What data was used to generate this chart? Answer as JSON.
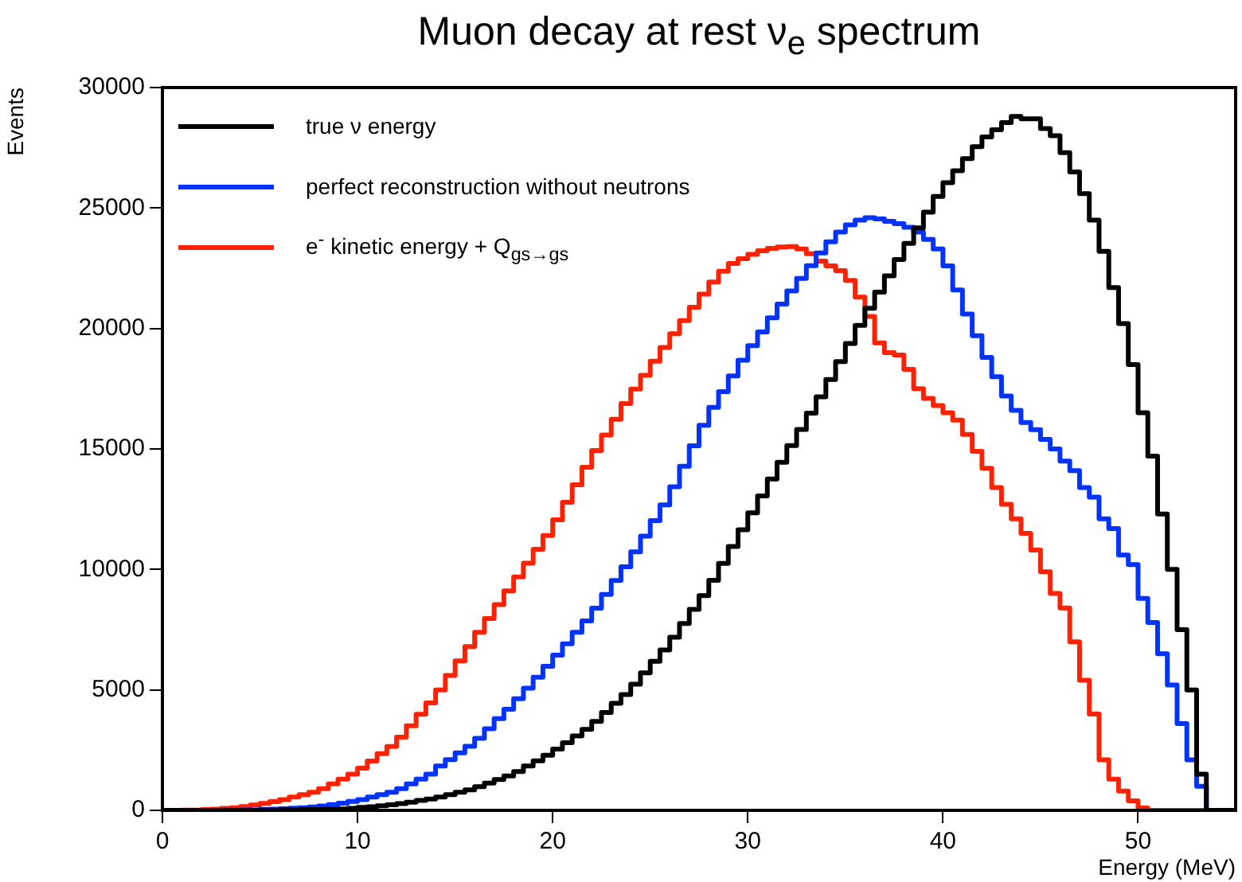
{
  "chart_data": {
    "type": "histogram",
    "title": "Muon decay at rest ν$_{e}$ spectrum",
    "xlabel": "Energy (MeV)",
    "ylabel": "Events",
    "bins": [
      0,
      0.5,
      1,
      1.5,
      2,
      2.5,
      3,
      3.5,
      4,
      4.5,
      5,
      5.5,
      6,
      6.5,
      7,
      7.5,
      8,
      8.5,
      9,
      9.5,
      10,
      10.5,
      11,
      11.5,
      12,
      12.5,
      13,
      13.5,
      14,
      14.5,
      15,
      15.5,
      16,
      16.5,
      17,
      17.5,
      18,
      18.5,
      19,
      19.5,
      20,
      20.5,
      21,
      21.5,
      22,
      22.5,
      23,
      23.5,
      24,
      24.5,
      25,
      25.5,
      26,
      26.5,
      27,
      27.5,
      28,
      28.5,
      29,
      29.5,
      30,
      30.5,
      31,
      31.5,
      32,
      32.5,
      33,
      33.5,
      34,
      34.5,
      35,
      35.5,
      36,
      36.5,
      37,
      37.5,
      38,
      38.5,
      39,
      39.5,
      40,
      40.5,
      41,
      41.5,
      42,
      42.5,
      43,
      43.5,
      44,
      44.5,
      45,
      45.5,
      46,
      46.5,
      47,
      47.5,
      48,
      48.5,
      49,
      49.5,
      50,
      50.5,
      51,
      51.5,
      52,
      52.5,
      53,
      53.5,
      54,
      54.5,
      55
    ],
    "series": [
      {
        "name": "true ν energy",
        "color": "#000000",
        "values": [
          0,
          0,
          0,
          0,
          0,
          0,
          0,
          0,
          0,
          0,
          10,
          10,
          20,
          20,
          30,
          30,
          40,
          50,
          60,
          80,
          120,
          150,
          190,
          230,
          280,
          340,
          410,
          470,
          550,
          650,
          750,
          850,
          980,
          1130,
          1280,
          1430,
          1610,
          1840,
          2060,
          2290,
          2540,
          2810,
          3090,
          3360,
          3690,
          4060,
          4440,
          4810,
          5240,
          5710,
          6190,
          6660,
          7190,
          7760,
          8340,
          8910,
          9550,
          10250,
          10950,
          11650,
          12350,
          13050,
          13750,
          14450,
          15140,
          15810,
          16490,
          17160,
          17880,
          18630,
          19380,
          20130,
          20840,
          21510,
          22190,
          22860,
          23530,
          24180,
          24830,
          25480,
          26050,
          26550,
          27050,
          27550,
          27950,
          28250,
          28550,
          28800,
          28700,
          28700,
          28300,
          28000,
          27300,
          26500,
          25600,
          24500,
          23200,
          21700,
          20200,
          18500,
          16500,
          14700,
          12300,
          10000,
          7500,
          5000,
          1500,
          0,
          0,
          0
        ]
      },
      {
        "name": "perfect reconstruction without neutrons",
        "color": "#0033ff",
        "values": [
          0,
          0,
          0,
          0,
          0,
          0,
          10,
          10,
          20,
          20,
          40,
          50,
          70,
          90,
          110,
          140,
          180,
          240,
          300,
          370,
          450,
          550,
          650,
          750,
          900,
          1100,
          1300,
          1500,
          1840,
          2110,
          2390,
          2660,
          2990,
          3390,
          3810,
          4200,
          4630,
          5070,
          5530,
          5980,
          6440,
          6910,
          7390,
          7860,
          8390,
          8960,
          9540,
          10110,
          10730,
          11380,
          12030,
          12680,
          13430,
          14280,
          15130,
          15980,
          16730,
          17380,
          18030,
          18680,
          19290,
          19860,
          20440,
          21010,
          21560,
          22080,
          22610,
          23140,
          23600,
          24000,
          24300,
          24500,
          24600,
          24550,
          24450,
          24350,
          24200,
          24000,
          23700,
          23300,
          22600,
          21600,
          20600,
          19700,
          18800,
          18000,
          17200,
          16600,
          16100,
          15800,
          15400,
          15000,
          14500,
          14100,
          13400,
          13000,
          12100,
          11700,
          10600,
          10200,
          8800,
          7800,
          6500,
          5200,
          3600,
          2100,
          1000,
          0,
          0,
          0
        ]
      },
      {
        "name": "e$^{-}$ kinetic energy + Q$_{gs→gs}$",
        "color": "#ff2200",
        "values": [
          0,
          0,
          10,
          10,
          30,
          50,
          80,
          110,
          160,
          220,
          290,
          360,
          450,
          550,
          650,
          750,
          900,
          1100,
          1300,
          1500,
          1750,
          2050,
          2350,
          2650,
          3040,
          3510,
          3990,
          4460,
          5000,
          5600,
          6200,
          6800,
          7390,
          7960,
          8540,
          9110,
          9690,
          10260,
          10840,
          11410,
          12060,
          12790,
          13510,
          14240,
          14930,
          15580,
          16230,
          16880,
          17490,
          18060,
          18640,
          19210,
          19780,
          20330,
          20880,
          21430,
          21930,
          22380,
          22700,
          22900,
          23080,
          23230,
          23330,
          23380,
          23400,
          23300,
          23100,
          22800,
          22600,
          22400,
          22000,
          21300,
          20500,
          19400,
          19000,
          18900,
          18300,
          17500,
          17100,
          16800,
          16500,
          16200,
          15600,
          14900,
          14200,
          13400,
          12700,
          12100,
          11500,
          10800,
          9900,
          9000,
          8400,
          7000,
          5400,
          4000,
          2100,
          1300,
          800,
          400,
          100,
          0,
          0,
          0,
          0,
          0,
          0,
          0,
          0,
          0
        ]
      }
    ],
    "xlim": [
      0,
      55
    ],
    "xticks": [
      0,
      10,
      20,
      30,
      40,
      50
    ],
    "ylim": [
      0,
      30000
    ],
    "yticks": [
      0,
      5000,
      10000,
      15000,
      20000,
      25000,
      30000
    ],
    "grid": false,
    "legend": "top left"
  }
}
